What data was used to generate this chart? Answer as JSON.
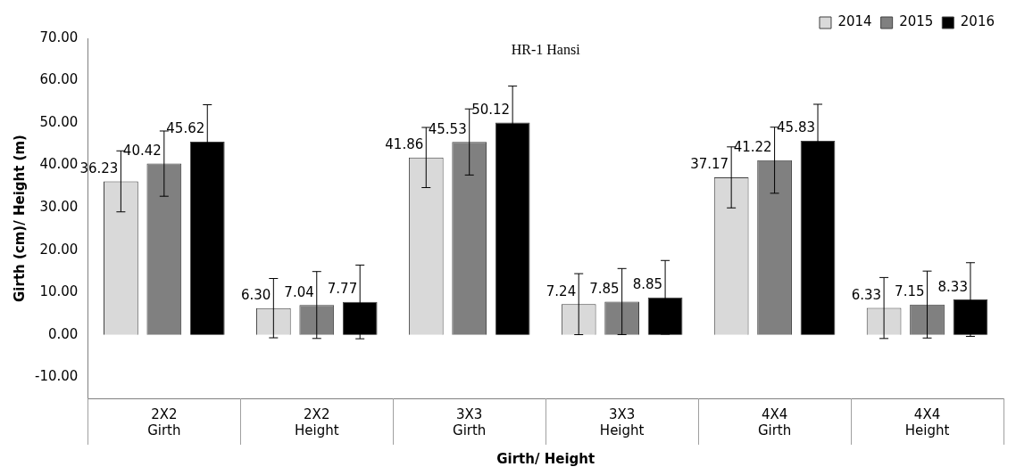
{
  "chart_data": {
    "type": "bar",
    "title": "HR-1 Hansi",
    "xlabel": "Girth/ Height",
    "ylabel": "Girth (cm)/ Height (m)",
    "categories": [
      "2X2\nGirth",
      "2X2\nHeight",
      "3X3\nGirth",
      "3X3\nHeight",
      "4X4\nGirth",
      "4X4\nHeight"
    ],
    "series": [
      {
        "name": "2014",
        "color": "#d9d9d9",
        "values": [
          36.23,
          6.3,
          41.86,
          7.24,
          37.17,
          6.33
        ],
        "value_labels": [
          "36.23",
          "6.30",
          "41.86",
          "7.24",
          "37.17",
          "6.33"
        ],
        "errors": [
          7.2,
          7.0,
          7.1,
          7.2,
          7.2,
          7.2
        ]
      },
      {
        "name": "2015",
        "color": "#808080",
        "values": [
          40.42,
          7.04,
          45.53,
          7.85,
          41.22,
          7.15
        ],
        "value_labels": [
          "40.42",
          "7.04",
          "45.53",
          "7.85",
          "41.22",
          "7.15"
        ],
        "errors": [
          7.7,
          7.9,
          7.8,
          7.8,
          7.8,
          7.9
        ]
      },
      {
        "name": "2016",
        "color": "#000000",
        "values": [
          45.62,
          7.77,
          50.12,
          8.85,
          45.83,
          8.33
        ],
        "value_labels": [
          "45.62",
          "7.77",
          "50.12",
          "8.85",
          "45.83",
          "8.33"
        ],
        "errors": [
          8.7,
          8.7,
          8.6,
          8.7,
          8.6,
          8.7
        ]
      }
    ],
    "ylim": [
      -15,
      70
    ],
    "yticks": [
      {
        "value": -10,
        "label": "-10.00"
      },
      {
        "value": 0,
        "label": "0.00"
      },
      {
        "value": 10,
        "label": "10.00"
      },
      {
        "value": 20,
        "label": "20.00"
      },
      {
        "value": 30,
        "label": "30.00"
      },
      {
        "value": 40,
        "label": "40.00"
      },
      {
        "value": 50,
        "label": "50.00"
      },
      {
        "value": 60,
        "label": "60.00"
      },
      {
        "value": 70,
        "label": "70.00"
      }
    ],
    "legend": "top right",
    "grid": false
  }
}
